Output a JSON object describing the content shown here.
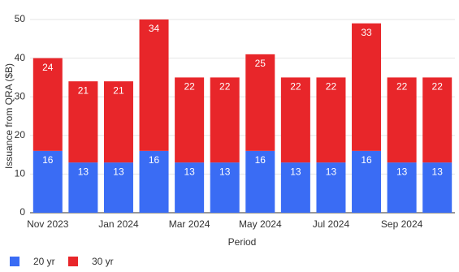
{
  "chart_data": {
    "type": "stacked_bar",
    "x_label": "Period",
    "y_label": "Issuance from QRA ($B)",
    "categories": [
      "Nov 2023",
      null,
      "Jan 2024",
      null,
      "Mar 2024",
      null,
      "May 2024",
      null,
      "Jul 2024",
      null,
      "Sep 2024",
      null
    ],
    "series": [
      {
        "name": "20 yr",
        "color": "#3a6cf4",
        "values": [
          16,
          13,
          13,
          16,
          13,
          13,
          16,
          13,
          13,
          16,
          13,
          13
        ]
      },
      {
        "name": "30 yr",
        "color": "#e8262a",
        "values": [
          24,
          21,
          21,
          34,
          22,
          22,
          25,
          22,
          22,
          33,
          22,
          22
        ]
      }
    ],
    "ylim": [
      0,
      50
    ],
    "yticks": [
      0,
      10,
      20,
      30,
      40,
      50
    ],
    "grid": true,
    "legend": "bottom-left"
  }
}
